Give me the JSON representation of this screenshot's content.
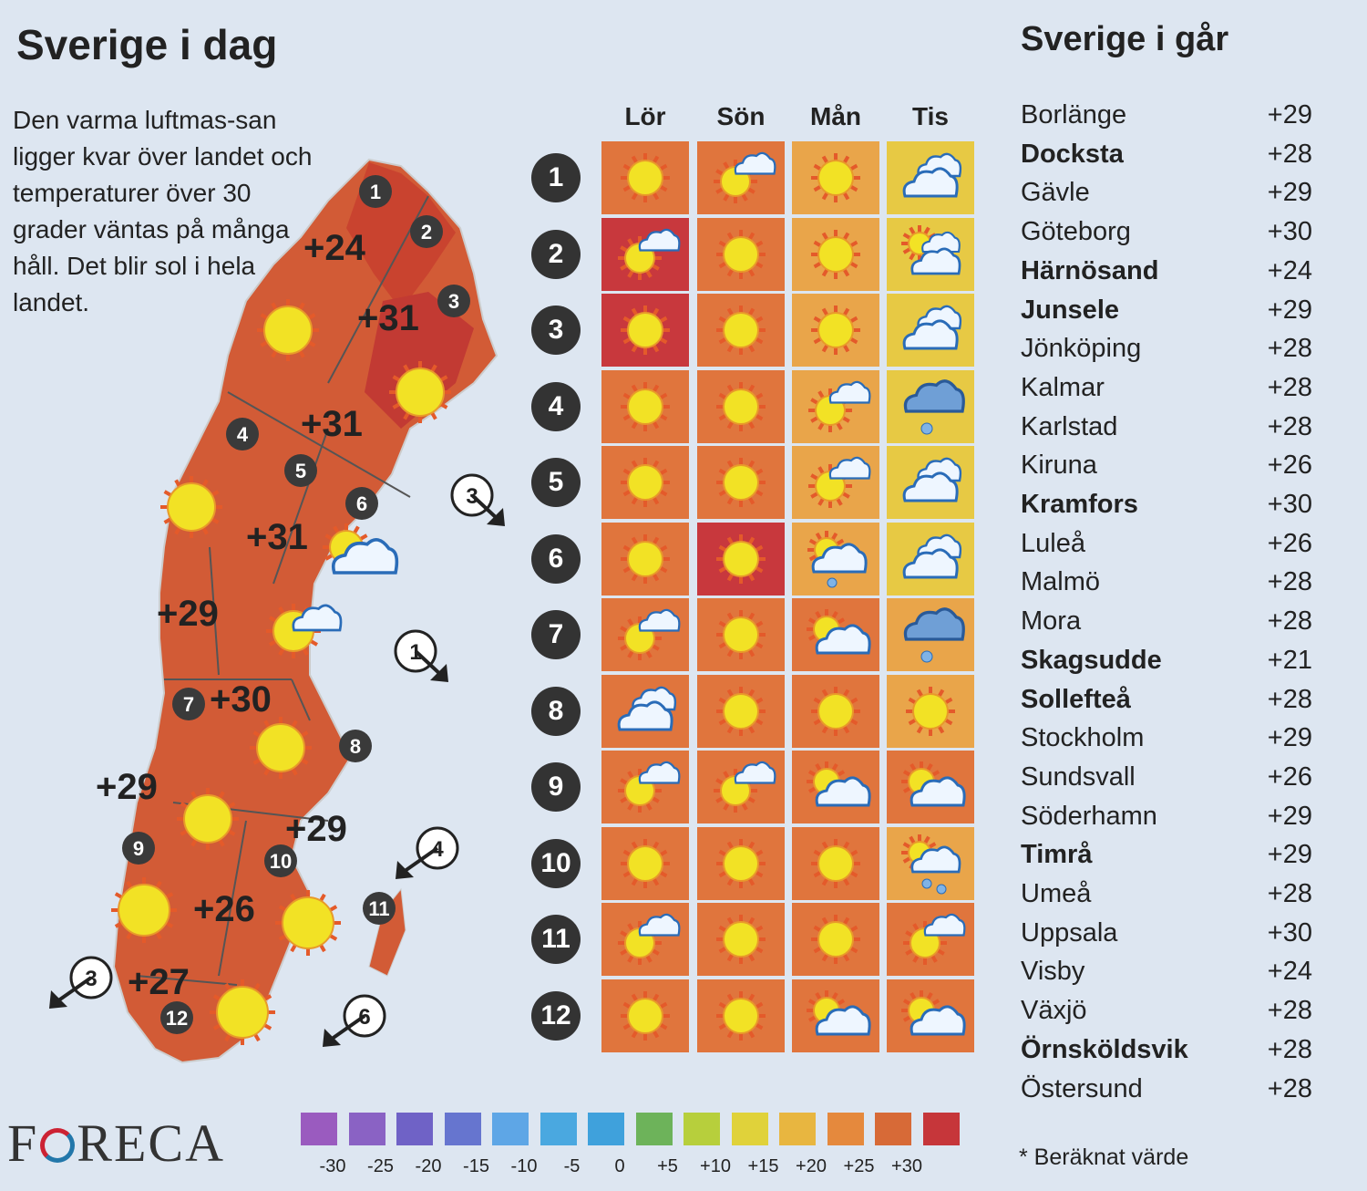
{
  "header": {
    "today": "Sverige i dag",
    "yesterday": "Sverige i går"
  },
  "intro": "Den varma luftmas-san ligger kvar över landet och temperaturer över 30 grader väntas på många håll. Det blir sol i hela landet.",
  "days": [
    "Lör",
    "Sön",
    "Mån",
    "Tis"
  ],
  "forecast": [
    {
      "row": "1",
      "icons": [
        "sun",
        "sun-cloud",
        "sun",
        "cloud"
      ],
      "bg": [
        "#e0753d",
        "#e0753d",
        "#e9a54a",
        "#e7c944"
      ]
    },
    {
      "row": "2",
      "icons": [
        "sun-cloud",
        "sun",
        "sun",
        "sun-clouds"
      ],
      "bg": [
        "#c8383d",
        "#e0753d",
        "#e9a54a",
        "#e7c944"
      ]
    },
    {
      "row": "3",
      "icons": [
        "sun",
        "sun",
        "sun",
        "cloud"
      ],
      "bg": [
        "#c8383d",
        "#e0753d",
        "#e9a54a",
        "#e7c944"
      ]
    },
    {
      "row": "4",
      "icons": [
        "sun",
        "sun",
        "sun-cloud",
        "rain"
      ],
      "bg": [
        "#e0753d",
        "#e0753d",
        "#e9a54a",
        "#e7c944"
      ]
    },
    {
      "row": "5",
      "icons": [
        "sun",
        "sun",
        "sun-cloud",
        "cloud"
      ],
      "bg": [
        "#e0753d",
        "#e0753d",
        "#e9a54a",
        "#e7c944"
      ]
    },
    {
      "row": "6",
      "icons": [
        "sun",
        "sun",
        "sun-cloud-rain",
        "cloud"
      ],
      "bg": [
        "#e0753d",
        "#c8383d",
        "#e9a54a",
        "#e7c944"
      ]
    },
    {
      "row": "7",
      "icons": [
        "sun-cloud",
        "sun",
        "sun-cloud-big",
        "rain"
      ],
      "bg": [
        "#e0753d",
        "#e0753d",
        "#e0753d",
        "#e9a54a"
      ]
    },
    {
      "row": "8",
      "icons": [
        "cloud",
        "sun",
        "sun",
        "sun"
      ],
      "bg": [
        "#e0753d",
        "#e0753d",
        "#e0753d",
        "#e9a54a"
      ]
    },
    {
      "row": "9",
      "icons": [
        "sun-cloud",
        "sun-cloud",
        "sun-cloud-big",
        "sun-cloud-big"
      ],
      "bg": [
        "#e0753d",
        "#e0753d",
        "#e0753d",
        "#e0753d"
      ]
    },
    {
      "row": "10",
      "icons": [
        "sun",
        "sun",
        "sun",
        "sun-rain"
      ],
      "bg": [
        "#e0753d",
        "#e0753d",
        "#e0753d",
        "#e9a54a"
      ]
    },
    {
      "row": "11",
      "icons": [
        "sun-cloud",
        "sun",
        "sun",
        "sun-cloud"
      ],
      "bg": [
        "#e0753d",
        "#e0753d",
        "#e0753d",
        "#e0753d"
      ]
    },
    {
      "row": "12",
      "icons": [
        "sun",
        "sun",
        "sun-cloud-big",
        "sun-cloud-big"
      ],
      "bg": [
        "#e0753d",
        "#e0753d",
        "#e0753d",
        "#e0753d"
      ]
    }
  ],
  "yesterday": [
    {
      "city": "Borlänge",
      "temp": "+29",
      "bold": false
    },
    {
      "city": "Docksta",
      "temp": "+28",
      "bold": true
    },
    {
      "city": "Gävle",
      "temp": "+29",
      "bold": false
    },
    {
      "city": "Göteborg",
      "temp": "+30",
      "bold": false
    },
    {
      "city": "Härnösand",
      "temp": "+24",
      "bold": true
    },
    {
      "city": "Junsele",
      "temp": "+29",
      "bold": true
    },
    {
      "city": "Jönköping",
      "temp": "+28",
      "bold": false
    },
    {
      "city": "Kalmar",
      "temp": "+28",
      "bold": false
    },
    {
      "city": "Karlstad",
      "temp": "+28",
      "bold": false
    },
    {
      "city": "Kiruna",
      "temp": "+26",
      "bold": false
    },
    {
      "city": "Kramfors",
      "temp": "+30",
      "bold": true
    },
    {
      "city": "Luleå",
      "temp": "+26",
      "bold": false
    },
    {
      "city": "Malmö",
      "temp": "+28",
      "bold": false
    },
    {
      "city": "Mora",
      "temp": "+28",
      "bold": false
    },
    {
      "city": "Skagsudde",
      "temp": "+21",
      "bold": true
    },
    {
      "city": "Sollefteå",
      "temp": "+28",
      "bold": true
    },
    {
      "city": "Stockholm",
      "temp": "+29",
      "bold": false
    },
    {
      "city": "Sundsvall",
      "temp": "+26",
      "bold": false
    },
    {
      "city": "Söderhamn",
      "temp": "+29",
      "bold": false
    },
    {
      "city": "Timrå",
      "temp": "+29",
      "bold": true
    },
    {
      "city": "Umeå",
      "temp": "+28",
      "bold": false
    },
    {
      "city": "Uppsala",
      "temp": "+30",
      "bold": false
    },
    {
      "city": "Visby",
      "temp": "+24",
      "bold": false
    },
    {
      "city": "Växjö",
      "temp": "+28",
      "bold": false
    },
    {
      "city": "Örnsköldsvik",
      "temp": "+28",
      "bold": true
    },
    {
      "city": "Östersund",
      "temp": "+28",
      "bold": false
    }
  ],
  "note": "* Beräknat värde",
  "logo": "FORECA",
  "map": {
    "temps": [
      "+24",
      "+31",
      "+31",
      "+31",
      "+29",
      "+30",
      "+29",
      "+29",
      "+26",
      "+27"
    ],
    "regions": [
      "1",
      "2",
      "3",
      "4",
      "5",
      "6",
      "7",
      "8",
      "9",
      "10",
      "11",
      "12"
    ],
    "winds": [
      "3",
      "1",
      "4",
      "3",
      "6"
    ]
  },
  "legend": [
    {
      "label": "-30",
      "color": "#9a5bbf"
    },
    {
      "label": "-25",
      "color": "#8a62c4"
    },
    {
      "label": "-20",
      "color": "#6f62c6"
    },
    {
      "label": "-15",
      "color": "#6675cf"
    },
    {
      "label": "-10",
      "color": "#5ea6e6"
    },
    {
      "label": "-5",
      "color": "#4aa8e0"
    },
    {
      "label": "0",
      "color": "#3fa1dc"
    },
    {
      "label": "+5",
      "color": "#6db35a"
    },
    {
      "label": "+10",
      "color": "#b7cf3c"
    },
    {
      "label": "+15",
      "color": "#e0d23a"
    },
    {
      "label": "+20",
      "color": "#e8b640"
    },
    {
      "label": "+25",
      "color": "#e5893d"
    },
    {
      "label": "+30",
      "color": "#d76a37"
    },
    {
      "label": "",
      "color": "#c6363a"
    }
  ]
}
